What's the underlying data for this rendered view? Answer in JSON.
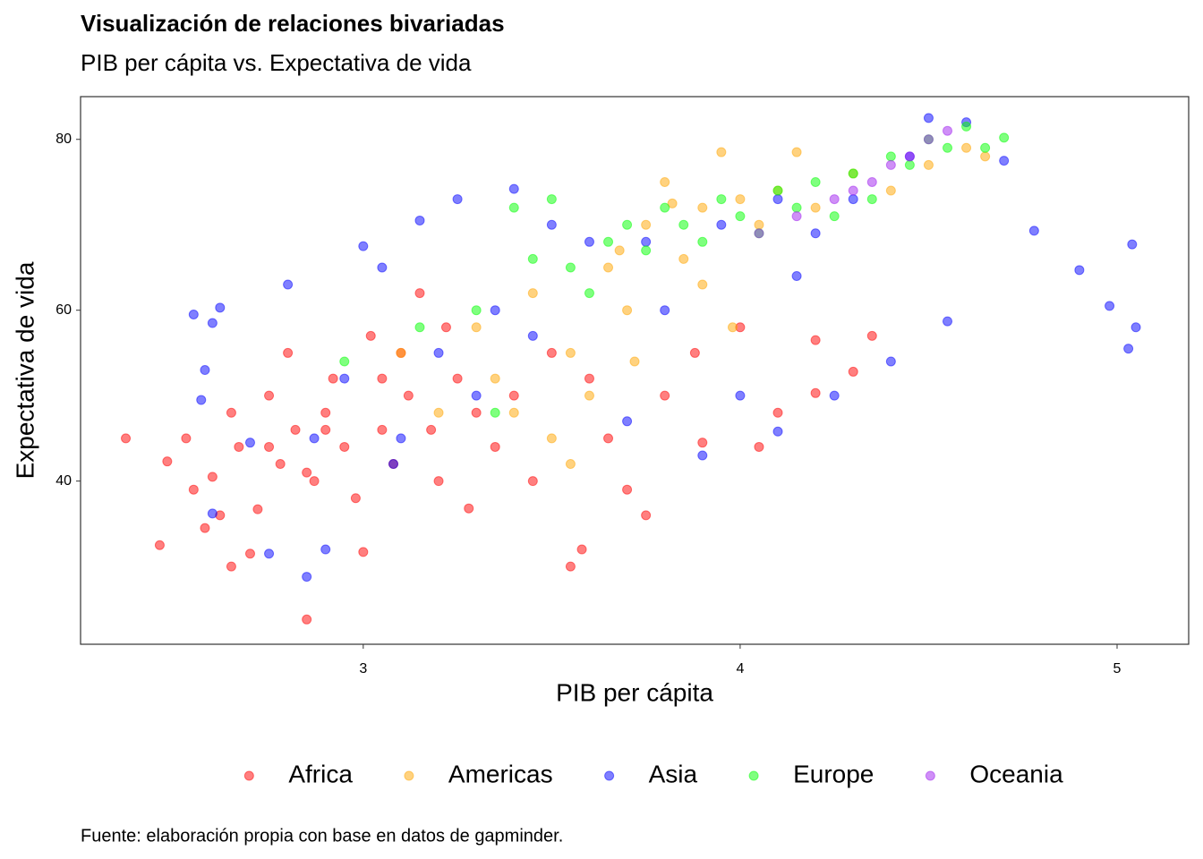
{
  "chart_data": {
    "type": "scatter",
    "title": "Visualización de relaciones bivariadas",
    "subtitle": "PIB per cápita vs. Expectativa de vida",
    "x_label": "PIB per cápita",
    "y_label": "Expectativa de vida",
    "caption": "Fuente: elaboración propia con base en datos de gapminder.",
    "xlim": [
      2.25,
      5.19
    ],
    "ylim": [
      20.9,
      85.0
    ],
    "xticks": [
      3,
      4,
      5
    ],
    "yticks": [
      40,
      60,
      80
    ],
    "grid": false,
    "legend": "bottom",
    "series": [
      {
        "name": "Africa",
        "color": "#ff0000",
        "x": [
          2.37,
          2.46,
          2.48,
          2.53,
          2.55,
          2.58,
          2.6,
          2.62,
          2.65,
          2.67,
          2.7,
          2.72,
          2.75,
          2.78,
          2.8,
          2.82,
          2.85,
          2.87,
          2.9,
          2.92,
          2.95,
          2.98,
          3.0,
          3.02,
          3.05,
          3.08,
          3.1,
          3.12,
          3.15,
          3.18,
          3.2,
          3.22,
          3.25,
          3.28,
          3.3,
          3.35,
          3.4,
          3.45,
          3.5,
          3.55,
          3.6,
          3.65,
          3.7,
          3.75,
          3.8,
          3.9,
          4.0,
          4.05,
          4.1,
          4.2,
          4.3,
          4.35,
          4.2,
          3.58,
          3.88,
          2.65,
          2.75,
          2.9,
          3.05,
          2.85
        ],
        "values": [
          45,
          32.5,
          42.3,
          45,
          39,
          34.5,
          40.5,
          36,
          48,
          44,
          31.5,
          36.7,
          50,
          42,
          55,
          46,
          23.8,
          40,
          48,
          52,
          44,
          38,
          31.7,
          57,
          46,
          42,
          55,
          50,
          62,
          46,
          40,
          58,
          52,
          36.8,
          48,
          44,
          50,
          40,
          55,
          30,
          52,
          45,
          39,
          36,
          50,
          44.5,
          58,
          44,
          48,
          56.5,
          52.8,
          57,
          50.3,
          32,
          55,
          30,
          44,
          46,
          52,
          41
        ]
      },
      {
        "name": "Americas",
        "color": "#ffa500",
        "x": [
          3.1,
          3.2,
          3.3,
          3.35,
          3.4,
          3.45,
          3.5,
          3.55,
          3.6,
          3.65,
          3.7,
          3.75,
          3.8,
          3.85,
          3.9,
          3.95,
          4.0,
          4.05,
          4.1,
          4.15,
          4.2,
          4.3,
          4.4,
          4.5,
          4.6,
          4.65,
          3.72,
          3.9,
          3.98,
          3.55,
          3.68,
          3.82
        ],
        "values": [
          55,
          48,
          58,
          52,
          48,
          62,
          45,
          55,
          50,
          65,
          60,
          70,
          75,
          66,
          72,
          78.5,
          73,
          70,
          74,
          78.5,
          72,
          76,
          74,
          77,
          79,
          78,
          54,
          63,
          58,
          42,
          67,
          72.5
        ]
      },
      {
        "name": "Asia",
        "color": "#0000ff",
        "x": [
          2.55,
          2.58,
          2.6,
          2.62,
          2.57,
          2.6,
          2.7,
          2.75,
          2.8,
          2.85,
          2.9,
          2.95,
          3.0,
          3.05,
          3.1,
          3.15,
          3.2,
          3.25,
          3.3,
          3.35,
          3.4,
          3.45,
          3.5,
          3.6,
          3.7,
          3.8,
          3.9,
          4.0,
          4.1,
          4.15,
          4.2,
          4.25,
          4.3,
          4.4,
          4.45,
          4.5,
          4.55,
          4.6,
          4.7,
          4.78,
          4.9,
          4.98,
          5.03,
          5.04,
          5.05,
          3.75,
          3.95,
          4.1,
          2.87,
          3.08
        ],
        "values": [
          59.5,
          53,
          58.5,
          60.3,
          49.5,
          36.2,
          44.5,
          31.5,
          63,
          28.8,
          32,
          52,
          67.5,
          65,
          45,
          70.5,
          55,
          73,
          50,
          60,
          74.2,
          57,
          70,
          68,
          47,
          60,
          43,
          50,
          45.8,
          64,
          69,
          50,
          73,
          54,
          78,
          82.5,
          58.7,
          82,
          77.5,
          69.3,
          64.7,
          60.5,
          55.5,
          67.7,
          58,
          68,
          70,
          73,
          45,
          42
        ]
      },
      {
        "name": "Europe",
        "color": "#00ff00",
        "x": [
          3.35,
          3.4,
          3.45,
          3.5,
          3.55,
          3.6,
          3.65,
          3.7,
          3.75,
          3.8,
          3.85,
          3.9,
          3.95,
          4.0,
          4.05,
          4.1,
          4.15,
          4.2,
          4.25,
          4.3,
          4.35,
          4.4,
          4.45,
          4.5,
          4.55,
          4.6,
          4.65,
          4.7,
          3.15,
          3.3,
          2.95
        ],
        "values": [
          48,
          72,
          66,
          73,
          65,
          62,
          68,
          70,
          67,
          72,
          70,
          68,
          73,
          71,
          69,
          74,
          72,
          75,
          71,
          76,
          73,
          78,
          77,
          80,
          79,
          81.5,
          79,
          80.2,
          58,
          60,
          54
        ]
      },
      {
        "name": "Oceania",
        "color": "#a020f0",
        "x": [
          4.05,
          4.15,
          4.25,
          4.3,
          4.35,
          4.4,
          4.45,
          4.5,
          4.55
        ],
        "values": [
          69,
          71,
          73,
          74,
          75,
          77,
          78,
          80,
          81
        ]
      }
    ]
  }
}
